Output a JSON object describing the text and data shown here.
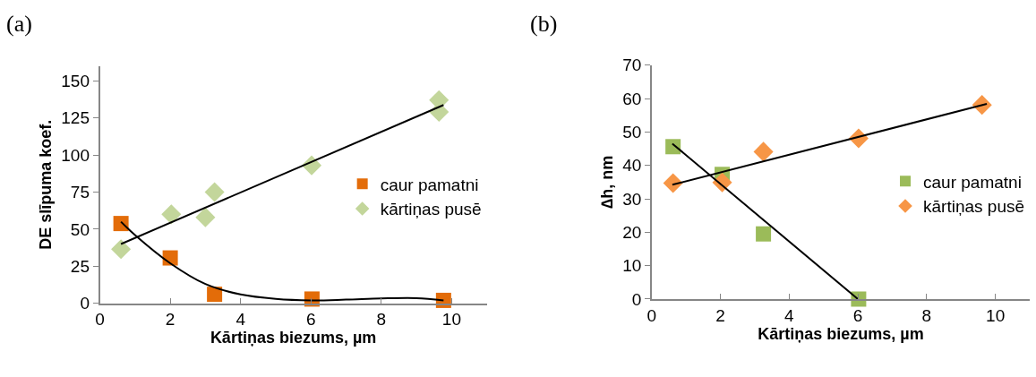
{
  "chart_data": [
    {
      "type": "scatter",
      "title": "(a)",
      "xlabel": "Kārtiņas biezums, µm",
      "ylabel": "DE slīpuma koef.",
      "xlim": [
        0,
        11
      ],
      "xticks": [
        0,
        2,
        4,
        6,
        8,
        10
      ],
      "ylim": [
        0,
        160
      ],
      "yticks": [
        0,
        25,
        50,
        75,
        100,
        125,
        150
      ],
      "legend": "right",
      "series": [
        {
          "name": "caur pamatni",
          "color": "#e36c09",
          "marker": "square",
          "x": [
            0.6,
            2.0,
            3.26,
            6.03,
            9.77
          ],
          "values": [
            53.8,
            30.6,
            6.1,
            2.9,
            2.0
          ]
        },
        {
          "name": "kārtiņas pusē",
          "color": "#c3d69b",
          "marker": "diamond",
          "x": [
            0.6,
            2.03,
            3.0,
            3.26,
            6.02,
            9.64,
            9.64
          ],
          "values": [
            36.5,
            60,
            58,
            75,
            93,
            137,
            129
          ]
        },
        {
          "type": "line",
          "color": "#000000",
          "x": [
            0.6,
            9.77
          ],
          "values": [
            40,
            133.7
          ]
        },
        {
          "type": "line",
          "color": "#000000",
          "x": [
            0.6,
            1,
            2,
            3,
            4,
            5,
            6,
            7,
            8,
            9,
            9.77
          ],
          "values": [
            55,
            46,
            27,
            13,
            6,
            3,
            2,
            2.5,
            3.3,
            3.5,
            2
          ]
        }
      ]
    },
    {
      "type": "scatter",
      "title": "(b)",
      "xlabel": "Kārtiņas biezums, µm",
      "ylabel": "∆h, nm",
      "xlim": [
        0,
        11
      ],
      "xticks": [
        0,
        2,
        4,
        6,
        8,
        10
      ],
      "ylim": [
        0,
        70
      ],
      "yticks": [
        0,
        10,
        20,
        30,
        40,
        50,
        60,
        70
      ],
      "legend": "right",
      "series": [
        {
          "name": "caur pamatni",
          "color": "#9bbb59",
          "marker": "square",
          "x": [
            0.62,
            2.05,
            3.25,
            6.02
          ],
          "values": [
            45.6,
            37.3,
            19.5,
            0
          ]
        },
        {
          "name": "kārtiņas pusē",
          "color": "#f79646",
          "marker": "diamond",
          "x": [
            0.62,
            2.05,
            3.25,
            6.02,
            9.61
          ],
          "values": [
            34.7,
            34.9,
            44.1,
            48.1,
            58.1
          ]
        },
        {
          "type": "line",
          "color": "#000000",
          "x": [
            0.6,
            9.75
          ],
          "values": [
            34.2,
            58.4
          ]
        },
        {
          "type": "line",
          "color": "#000000",
          "x": [
            0.6,
            6.0
          ],
          "values": [
            46.5,
            0
          ]
        }
      ]
    }
  ]
}
